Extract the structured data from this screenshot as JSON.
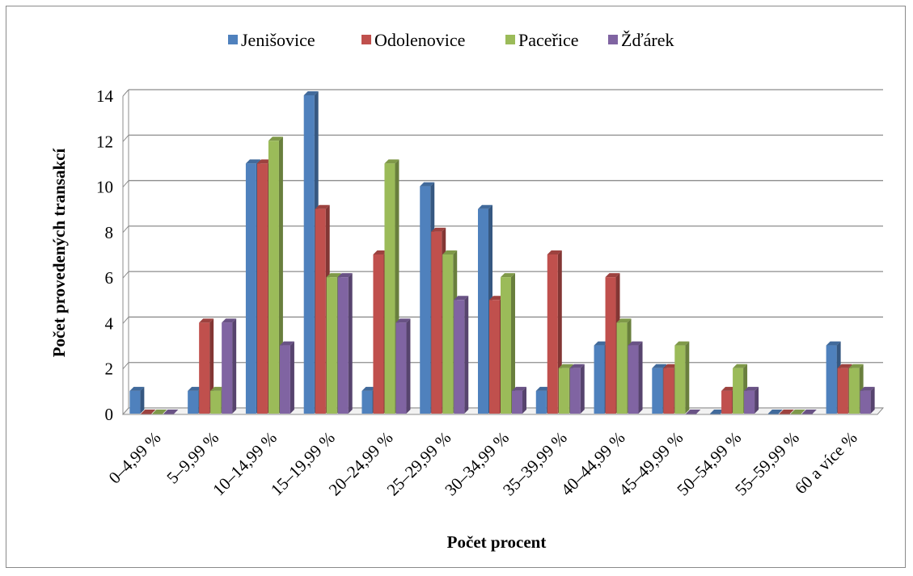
{
  "chart_data": {
    "type": "bar",
    "title": "",
    "xlabel": "Počet procent",
    "ylabel": "Počet provedených transakcí",
    "categories": [
      "0–4,99 %",
      "5–9,99 %",
      "10–14,99 %",
      "15–19,99 %",
      "20–24,99 %",
      "25–29,99 %",
      "30–34,99 %",
      "35–39,99 %",
      "40–44,99 %",
      "45–49,99 %",
      "50–54,99 %",
      "55–59,99 %",
      "60 a více %"
    ],
    "series": [
      {
        "name": "Jenišovice",
        "color": "#4F81BD",
        "values": [
          1,
          1,
          11,
          14,
          1,
          10,
          9,
          1,
          3,
          2,
          0,
          0,
          3
        ]
      },
      {
        "name": "Odolenovice",
        "color": "#C0504D",
        "values": [
          0,
          4,
          11,
          9,
          7,
          8,
          5,
          7,
          6,
          2,
          1,
          0,
          2
        ]
      },
      {
        "name": "Paceřice",
        "color": "#9BBB59",
        "values": [
          0,
          1,
          12,
          6,
          11,
          7,
          6,
          2,
          4,
          3,
          2,
          0,
          2
        ]
      },
      {
        "name": "Žďárek",
        "color": "#8064A2",
        "values": [
          0,
          4,
          3,
          6,
          4,
          5,
          1,
          2,
          3,
          0,
          1,
          0,
          1
        ]
      }
    ],
    "ylim": [
      0,
      14
    ],
    "yticks": [
      0,
      2,
      4,
      6,
      8,
      10,
      12,
      14
    ],
    "grid": true,
    "legend_position": "top"
  }
}
